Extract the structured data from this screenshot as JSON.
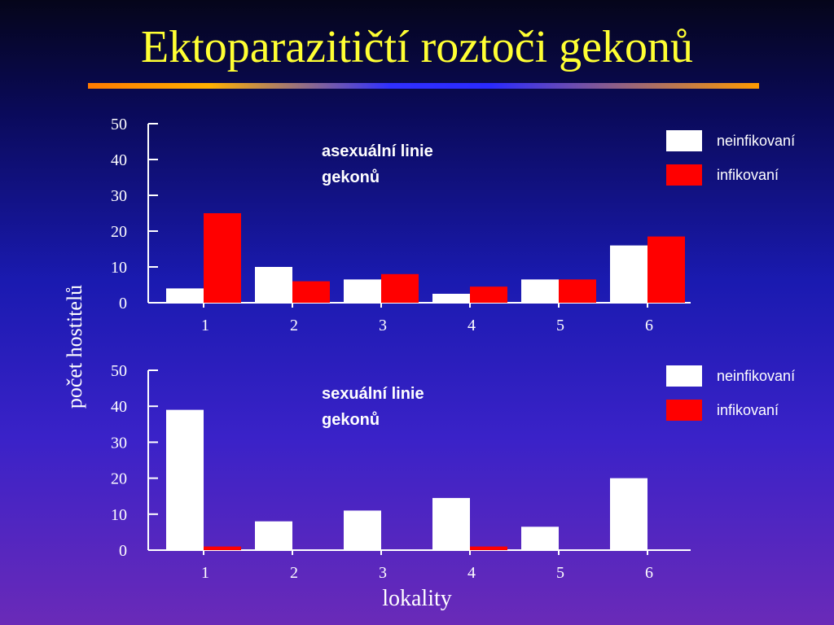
{
  "title": "Ektoparazitičtí roztoči gekonů",
  "shared_ylabel": "počet hostitelů",
  "shared_xlabel": "lokality",
  "colors": {
    "neinfikovani": "#ffffff",
    "infikovani": "#ff0000",
    "title": "#ffff33",
    "background_top": "#05051a",
    "background_bottom": "#6a2ab8"
  },
  "chart_data": [
    {
      "type": "bar",
      "annotation": [
        "asexuální linie",
        "gekonů"
      ],
      "categories": [
        "1",
        "2",
        "3",
        "4",
        "5",
        "6"
      ],
      "ylim": [
        0,
        50
      ],
      "yticks": [
        "0",
        "10",
        "20",
        "30",
        "40",
        "50"
      ],
      "legend_position": "top-right",
      "series": [
        {
          "name": "neinfikovaní",
          "values": [
            4,
            10,
            6.5,
            2.5,
            6.5,
            16
          ]
        },
        {
          "name": "infikovaní",
          "values": [
            25,
            6,
            8,
            4.5,
            6.5,
            18.5
          ]
        }
      ]
    },
    {
      "type": "bar",
      "annotation": [
        "sexuální linie",
        "gekonů"
      ],
      "categories": [
        "1",
        "2",
        "3",
        "4",
        "5",
        "6"
      ],
      "ylim": [
        0,
        50
      ],
      "yticks": [
        "0",
        "10",
        "20",
        "30",
        "40",
        "50"
      ],
      "legend_position": "top-right",
      "series": [
        {
          "name": "neinfikovaní",
          "values": [
            39,
            8,
            11,
            14.5,
            6.5,
            20
          ]
        },
        {
          "name": "infikovaní",
          "values": [
            1,
            0,
            0,
            1,
            0,
            0
          ]
        }
      ]
    }
  ]
}
